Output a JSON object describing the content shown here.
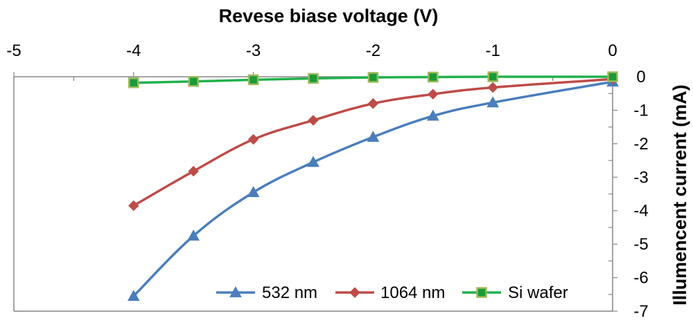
{
  "chart_data": {
    "type": "line",
    "xlabel": "Revese biase voltage (V)",
    "ylabel": "Illumencent current (mA)",
    "xlim": [
      -5,
      0
    ],
    "ylim": [
      -7,
      0
    ],
    "x_ticks": [
      "-5",
      "-4",
      "-3",
      "-2",
      "-1",
      "0"
    ],
    "y_ticks": [
      "0",
      "-1",
      "-2",
      "-3",
      "-4",
      "-5",
      "-6",
      "-7"
    ],
    "x_axis_position": "top",
    "y_axis_position": "right",
    "grid": false,
    "legend_position": "bottom-right",
    "series": [
      {
        "name": "532 nm",
        "color": "#4a7ebb",
        "marker": "triangle",
        "x": [
          -4,
          -3.5,
          -3,
          -2.5,
          -2,
          -1.5,
          -1,
          0
        ],
        "y": [
          -6.55,
          -4.75,
          -3.45,
          -2.55,
          -1.8,
          -1.17,
          -0.77,
          -0.15
        ]
      },
      {
        "name": "1064 nm",
        "color": "#be4b48",
        "marker": "diamond",
        "x": [
          -4,
          -3.5,
          -3,
          -2.5,
          -2,
          -1.5,
          -1,
          0
        ],
        "y": [
          -3.85,
          -2.82,
          -1.87,
          -1.3,
          -0.8,
          -0.52,
          -0.32,
          -0.07
        ]
      },
      {
        "name": "Si wafer",
        "color": "#22b14c",
        "marker_fill": "#1a9a3a",
        "marker_edge": "#9bbb59",
        "marker": "square",
        "x": [
          -4,
          -3.5,
          -3,
          -2.5,
          -2,
          -1.5,
          -1,
          0
        ],
        "y": [
          -0.18,
          -0.14,
          -0.09,
          -0.05,
          -0.02,
          -0.01,
          0.0,
          0.0
        ]
      }
    ]
  }
}
